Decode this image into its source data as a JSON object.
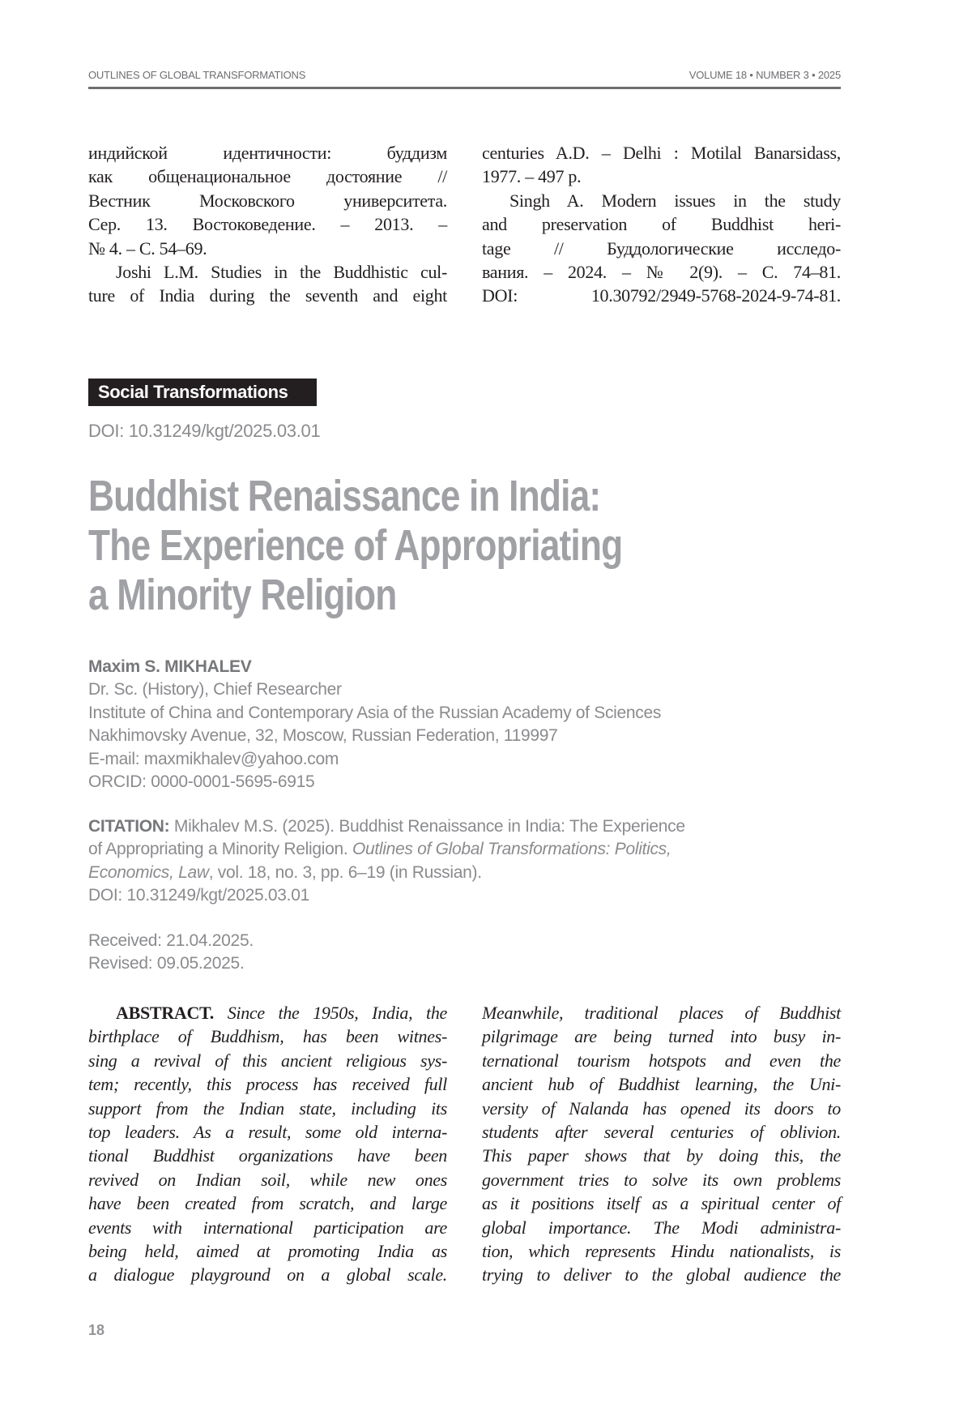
{
  "header": {
    "journal": "OUTLINES OF GLOBAL TRANSFORMATIONS",
    "issue": "VOLUME 18 • NUMBER 3 • 2025"
  },
  "references": {
    "left": [
      "индийской идентичности: буддизм",
      "как общенациональное достояние //",
      "Вестник Московского университета.",
      "Сер. 13. Востоковедение. – 2013. –",
      "№ 4. – С. 54–69.",
      "Joshi L.M. Studies in the Buddhistic cul-",
      "ture of India during the seventh and eight"
    ],
    "right": [
      "centuries A.D. – Delhi : Motilal Banarsidass,",
      "1977. – 497 p.",
      "Singh A. Modern issues in the study",
      "and preservation of Buddhist heri-",
      "tage // Буддологические исследо-",
      "вания. – 2024. – № 2(9). – С. 74–81.",
      "DOI: 10.30792/2949-5768-2024-9-74-81."
    ]
  },
  "section_label": "Social Transformations",
  "doi": "DOI: 10.31249/kgt/2025.03.01",
  "title": [
    "Buddhist Renaissance in India:",
    "The Experience of Appropriating",
    "a Minority Religion"
  ],
  "author": {
    "name": "Maxim S. MIKHALEV",
    "position": "Dr. Sc. (History), Chief Researcher",
    "institution": "Institute of China and Contemporary Asia of the Russian Academy of Sciences",
    "address": "Nakhimovsky Avenue, 32, Moscow, Russian Federation, 119997",
    "email": "E-mail: maxmikhalev@yahoo.com",
    "orcid": "ORCID: 0000-0001-5695-6915"
  },
  "citation": {
    "label": "CITATION:",
    "line1": " Mikhalev M.S. (2025). Buddhist Renaissance in India: The Experience",
    "line2": "of Appropriating a Minority Religion. ",
    "line2_italic": "Outlines of Global Transformations: Politics,",
    "line3_italic": "Economics, Law",
    "line3": ", vol. 18, no. 3, pp. 6–19 (in Russian).",
    "doi": "DOI: 10.31249/kgt/2025.03.01"
  },
  "dates": {
    "received": "Received: 21.04.2025.",
    "revised": "Revised: 09.05.2025."
  },
  "abstract": {
    "label": "ABSTRACT.",
    "left": [
      " Since the 1950s, India, the",
      "birthplace of Buddhism, has been witnes-",
      "sing a revival of this ancient religious sys-",
      "tem; recently, this process has received full",
      "support from the Indian state, including its",
      "top leaders. As a result, some old interna-",
      "tional Buddhist organizations have been",
      "revived on Indian soil, while new ones",
      "have been created from scratch, and large",
      "events with international participation are",
      "being held, aimed at promoting India as",
      "a dialogue playground on a global scale."
    ],
    "right": [
      "Meanwhile, traditional places of Buddhist",
      "pilgrimage are being turned into busy in-",
      "ternational tourism hotspots and even the",
      "ancient hub of Buddhist learning, the Uni-",
      "versity of Nalanda has opened its doors to",
      "students after several centuries of oblivion.",
      "This paper shows that by doing this, the",
      "government tries to solve its own problems",
      "as it positions itself as a spiritual center of",
      "global importance. The Modi administra-",
      "tion, which represents Hindu nationalists, is",
      "trying to deliver to the global audience the"
    ]
  },
  "page_number": "18"
}
